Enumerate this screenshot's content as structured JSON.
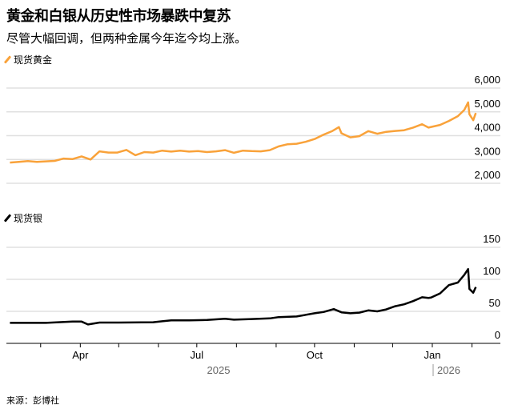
{
  "title": "黄金和白银从历史性市场暴跌中复苏",
  "subtitle": "尽管大幅回调，但两种金属今年迄今均上涨。",
  "source": "来源：彭博社",
  "colors": {
    "gold": "#f9a23a",
    "silver": "#000000",
    "grid": "#e0e0e0"
  },
  "chart_data": [
    {
      "type": "line",
      "legend": "现货黄金",
      "color": "#f9a23a",
      "ylim": [
        2000,
        6000
      ],
      "yticks": [
        "2,000",
        "3,000",
        "4,000",
        "5,000",
        "6,000"
      ],
      "ytick_values": [
        2000,
        3000,
        4000,
        5000,
        6000
      ],
      "grid": true,
      "x": [
        "2025-02-05",
        "2025-02-12",
        "2025-02-19",
        "2025-02-26",
        "2025-03-05",
        "2025-03-12",
        "2025-03-19",
        "2025-03-26",
        "2025-04-02",
        "2025-04-09",
        "2025-04-16",
        "2025-04-23",
        "2025-04-30",
        "2025-05-07",
        "2025-05-14",
        "2025-05-21",
        "2025-05-28",
        "2025-06-04",
        "2025-06-11",
        "2025-06-18",
        "2025-06-25",
        "2025-07-02",
        "2025-07-09",
        "2025-07-16",
        "2025-07-23",
        "2025-07-30",
        "2025-08-06",
        "2025-08-13",
        "2025-08-20",
        "2025-08-27",
        "2025-09-03",
        "2025-09-10",
        "2025-09-17",
        "2025-09-24",
        "2025-10-01",
        "2025-10-08",
        "2025-10-15",
        "2025-10-20",
        "2025-10-22",
        "2025-10-29",
        "2025-11-05",
        "2025-11-12",
        "2025-11-19",
        "2025-11-26",
        "2025-12-03",
        "2025-12-10",
        "2025-12-17",
        "2025-12-24",
        "2025-12-29",
        "2026-01-07",
        "2026-01-14",
        "2026-01-21",
        "2026-01-26",
        "2026-01-29",
        "2026-01-30",
        "2026-02-02",
        "2026-02-04"
      ],
      "values": [
        2870,
        2900,
        2930,
        2900,
        2920,
        2940,
        3040,
        3020,
        3130,
        3000,
        3340,
        3290,
        3290,
        3400,
        3180,
        3310,
        3290,
        3370,
        3330,
        3370,
        3330,
        3350,
        3310,
        3340,
        3390,
        3280,
        3370,
        3350,
        3340,
        3390,
        3550,
        3640,
        3660,
        3740,
        3860,
        4040,
        4200,
        4360,
        4100,
        3930,
        3980,
        4190,
        4080,
        4160,
        4200,
        4230,
        4340,
        4480,
        4340,
        4450,
        4620,
        4820,
        5080,
        5400,
        4900,
        4650,
        4950
      ]
    },
    {
      "type": "line",
      "legend": "现货银",
      "color": "#000000",
      "ylim": [
        0,
        150
      ],
      "yticks": [
        "0",
        "50",
        "100",
        "150"
      ],
      "ytick_values": [
        0,
        50,
        100,
        150
      ],
      "grid": true,
      "x": [
        "2025-02-05",
        "2025-03-05",
        "2025-03-26",
        "2025-04-02",
        "2025-04-07",
        "2025-04-16",
        "2025-05-01",
        "2025-05-28",
        "2025-06-04",
        "2025-06-11",
        "2025-06-25",
        "2025-07-09",
        "2025-07-23",
        "2025-07-30",
        "2025-08-13",
        "2025-08-27",
        "2025-09-03",
        "2025-09-17",
        "2025-10-01",
        "2025-10-08",
        "2025-10-16",
        "2025-10-22",
        "2025-10-29",
        "2025-11-05",
        "2025-11-12",
        "2025-11-19",
        "2025-11-26",
        "2025-12-03",
        "2025-12-10",
        "2025-12-17",
        "2025-12-24",
        "2025-12-29",
        "2025-12-31",
        "2026-01-07",
        "2026-01-14",
        "2026-01-21",
        "2026-01-26",
        "2026-01-29",
        "2026-01-30",
        "2026-02-02",
        "2026-02-04"
      ],
      "values": [
        32,
        32,
        34,
        34,
        29.5,
        32.5,
        32.5,
        33,
        34.5,
        36,
        36,
        36.5,
        38.5,
        37,
        38,
        39,
        41,
        42,
        47,
        49,
        53.5,
        48.5,
        47,
        48,
        51.5,
        50,
        53,
        58,
        61,
        66,
        72,
        71,
        71.5,
        78,
        91,
        95,
        107,
        116,
        85,
        79,
        88
      ]
    }
  ],
  "xaxis": {
    "ticks": [
      "Apr",
      "Jul",
      "Oct",
      "Jan"
    ],
    "years": [
      "2025",
      "2026"
    ]
  }
}
